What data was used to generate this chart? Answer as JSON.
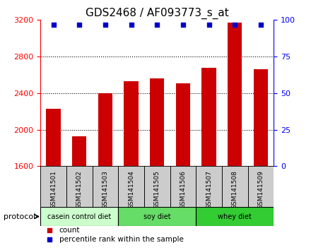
{
  "title": "GDS2468 / AF093773_s_at",
  "categories": [
    "GSM141501",
    "GSM141502",
    "GSM141503",
    "GSM141504",
    "GSM141505",
    "GSM141506",
    "GSM141507",
    "GSM141508",
    "GSM141509"
  ],
  "bar_values": [
    2230,
    1930,
    2400,
    2530,
    2560,
    2510,
    2680,
    3170,
    2660
  ],
  "percentile_values": [
    97,
    97,
    97,
    97,
    97,
    97,
    97,
    97,
    97
  ],
  "ylim_left": [
    1600,
    3200
  ],
  "ylim_right": [
    0,
    100
  ],
  "yticks_left": [
    1600,
    2000,
    2400,
    2800,
    3200
  ],
  "yticks_right": [
    0,
    25,
    50,
    75,
    100
  ],
  "bar_color": "#cc0000",
  "dot_color": "#0000cc",
  "grid_lines": [
    2000,
    2400,
    2800
  ],
  "protocol_groups": [
    {
      "label": "casein control diet",
      "start": 0,
      "end": 2,
      "color": "#ccffcc"
    },
    {
      "label": "soy diet",
      "start": 3,
      "end": 5,
      "color": "#66dd66"
    },
    {
      "label": "whey diet",
      "start": 6,
      "end": 8,
      "color": "#33cc33"
    }
  ],
  "protocol_label": "protocol",
  "legend_items": [
    {
      "label": "count",
      "color": "#cc0000"
    },
    {
      "label": "percentile rank within the sample",
      "color": "#0000cc"
    }
  ],
  "tick_bg_color": "#cccccc",
  "title_fontsize": 11,
  "tick_fontsize": 8,
  "label_fontsize": 6.5,
  "proto_fontsize": 7,
  "legend_fontsize": 7.5
}
